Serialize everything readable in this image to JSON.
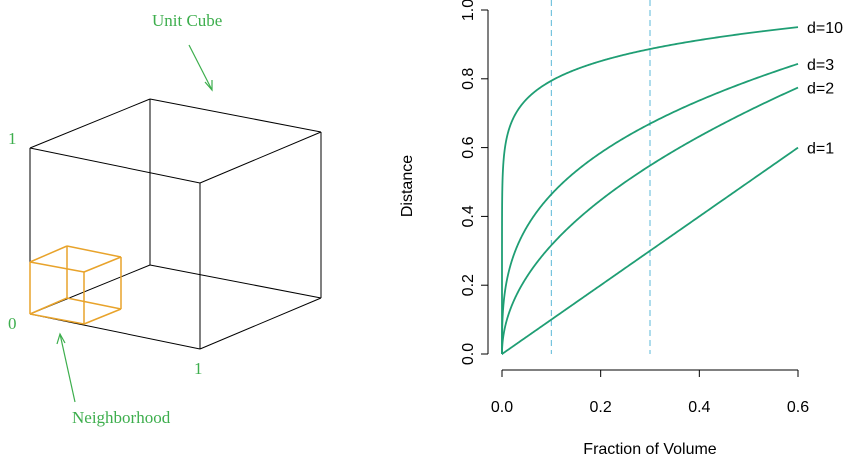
{
  "colors": {
    "accent": "#3dae4d",
    "cube_edge": "#000000",
    "neighborhood": "#e8a32b",
    "curve": "#1f9e74",
    "reference_line": "#5bb8d8"
  },
  "left_panel": {
    "unit_cube_label": "Unit Cube",
    "neighborhood_label": "Neighborhood",
    "axis_marks": {
      "one_vertical": "1",
      "zero": "0",
      "one_horizontal": "1"
    }
  },
  "chart_data": {
    "type": "line",
    "title": "",
    "xlabel": "Fraction of Volume",
    "ylabel": "Distance",
    "xlim": [
      0.0,
      0.6
    ],
    "ylim": [
      0.0,
      1.0
    ],
    "x_ticks": [
      0.0,
      0.2,
      0.4,
      0.6
    ],
    "x_tick_labels": [
      "0.0",
      "0.2",
      "0.4",
      "0.6"
    ],
    "y_ticks": [
      0.0,
      0.2,
      0.4,
      0.6,
      0.8,
      1.0
    ],
    "y_tick_labels": [
      "0.0",
      "0.2",
      "0.4",
      "0.6",
      "0.8",
      "1.0"
    ],
    "grid": false,
    "reference_lines_x": [
      0.1,
      0.3
    ],
    "series": [
      {
        "name": "d=10",
        "dimension": 10
      },
      {
        "name": "d=3",
        "dimension": 3
      },
      {
        "name": "d=2",
        "dimension": 2
      },
      {
        "name": "d=1",
        "dimension": 1
      }
    ],
    "curve_function": "distance = fraction^(1/d)"
  }
}
